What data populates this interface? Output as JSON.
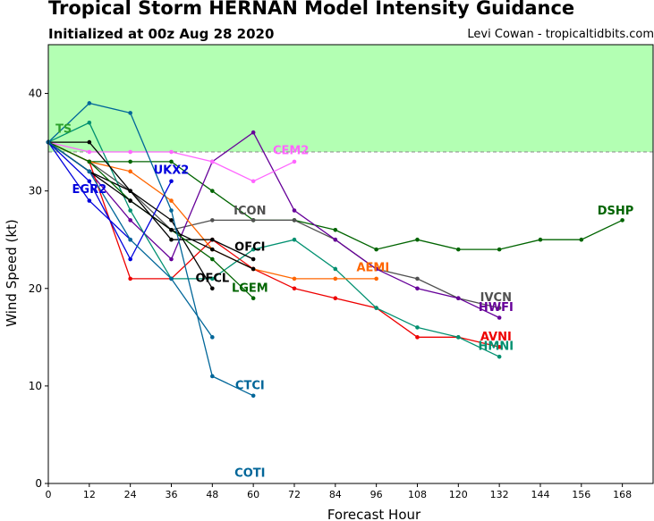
{
  "header": {
    "title": "Tropical Storm HERNAN Model Intensity Guidance",
    "subtitle": "Initialized at 00z Aug 28 2020",
    "credit": "Levi Cowan - tropicaltidbits.com"
  },
  "chart_data": {
    "type": "line",
    "xlabel": "Forecast Hour",
    "ylabel": "Wind Speed (kt)",
    "xlim": [
      0,
      177
    ],
    "ylim": [
      0,
      45
    ],
    "xticks": [
      0,
      12,
      24,
      36,
      48,
      60,
      72,
      84,
      96,
      108,
      120,
      132,
      144,
      156,
      168
    ],
    "yticks": [
      0,
      10,
      20,
      30,
      40
    ],
    "grid": false,
    "legend": "none",
    "threshold_band": {
      "label": "TS",
      "y0": 34,
      "y1": 45,
      "fill": "#b3ffb3",
      "line": "#888888"
    },
    "series": [
      {
        "name": "DSHP",
        "color": "#006400",
        "x": [
          0,
          12,
          24,
          36,
          48,
          60,
          72,
          84,
          96,
          108,
          120,
          132,
          144,
          156,
          168
        ],
        "y": [
          35,
          33,
          33,
          33,
          30,
          27,
          27,
          26,
          24,
          25,
          24,
          24,
          25,
          25,
          27
        ]
      },
      {
        "name": "IVCN",
        "color": "#505050",
        "x": [
          0,
          12,
          24,
          36,
          48,
          60,
          72,
          84,
          96,
          108,
          120,
          132
        ],
        "y": [
          35,
          33,
          30,
          26,
          27,
          27,
          27,
          25,
          22,
          21,
          19,
          18
        ]
      },
      {
        "name": "HWFI",
        "color": "#660099",
        "x": [
          0,
          12,
          24,
          36,
          48,
          60,
          72,
          84,
          96,
          108,
          120,
          132
        ],
        "y": [
          35,
          32,
          27,
          23,
          33,
          36,
          28,
          25,
          22,
          20,
          19,
          17
        ]
      },
      {
        "name": "AVNI",
        "color": "#ee0000",
        "x": [
          0,
          12,
          24,
          36,
          48,
          60,
          72,
          84,
          96,
          108,
          120,
          132
        ],
        "y": [
          35,
          33,
          21,
          21,
          25,
          22,
          20,
          19,
          18,
          15,
          15,
          14
        ]
      },
      {
        "name": "HMNI",
        "color": "#009070",
        "x": [
          0,
          12,
          24,
          36,
          48,
          60,
          72,
          84,
          96,
          108,
          120,
          132
        ],
        "y": [
          35,
          37,
          28,
          21,
          21,
          24,
          25,
          22,
          18,
          16,
          15,
          13
        ]
      },
      {
        "name": "AEMI",
        "color": "#ff6600",
        "x": [
          0,
          12,
          24,
          36,
          48,
          60,
          72,
          84,
          96
        ],
        "y": [
          35,
          33,
          32,
          29,
          24,
          22,
          21,
          21,
          21
        ]
      },
      {
        "name": "CEM2",
        "color": "#ff66ff",
        "x": [
          0,
          12,
          24,
          36,
          48,
          60,
          72
        ],
        "y": [
          35,
          34,
          34,
          34,
          33,
          31,
          33
        ]
      },
      {
        "name": "UKX2",
        "color": "#0000dd",
        "x": [
          0,
          12,
          24,
          36
        ],
        "y": [
          35,
          31,
          23,
          31
        ]
      },
      {
        "name": "EGR2",
        "color": "#0000dd",
        "x": [
          0,
          12,
          24
        ],
        "y": [
          35,
          29,
          25
        ]
      },
      {
        "name": "OFCI",
        "color": "#000000",
        "x": [
          0,
          12,
          24,
          36,
          48,
          60
        ],
        "y": [
          35,
          35,
          30,
          25,
          25,
          23
        ]
      },
      {
        "name": "OFCL",
        "color": "#000000",
        "x": [
          0,
          12,
          24,
          36,
          48
        ],
        "y": [
          35,
          32,
          30,
          27,
          20
        ]
      },
      {
        "name": "LGEM",
        "color": "#006400",
        "x": [
          0,
          12,
          24,
          36,
          48,
          60
        ],
        "y": [
          35,
          33,
          29,
          26,
          23,
          19
        ]
      },
      {
        "name": "",
        "color": "#000000",
        "x": [
          0,
          12,
          24,
          36,
          48,
          60
        ],
        "y": [
          35,
          32,
          29,
          26,
          24,
          22
        ]
      },
      {
        "name": "CTCI",
        "color": "#006699",
        "x": [
          0,
          12,
          24,
          36,
          48,
          60
        ],
        "y": [
          35,
          39,
          38,
          28,
          11,
          9
        ]
      },
      {
        "name": "COTI",
        "color": "#006699",
        "x": [
          0,
          12,
          24,
          36,
          48
        ],
        "y": [
          35,
          32,
          25,
          21,
          15
        ]
      }
    ],
    "labels": [
      {
        "text": "TS",
        "x": 4.5,
        "y": 36.3,
        "color": "#2ca02c"
      },
      {
        "text": "CEM2",
        "x": 71,
        "y": 34.1,
        "color": "#ff66ff"
      },
      {
        "text": "UKX2",
        "x": 36,
        "y": 32.1,
        "color": "#0000dd"
      },
      {
        "text": "EGR2",
        "x": 12,
        "y": 30.1,
        "color": "#0000dd"
      },
      {
        "text": "ICON",
        "x": 59,
        "y": 27.9,
        "color": "#505050"
      },
      {
        "text": "DSHP",
        "x": 166,
        "y": 27.9,
        "color": "#006400"
      },
      {
        "text": "OFCI",
        "x": 59,
        "y": 24.2,
        "color": "#000000"
      },
      {
        "text": "AEMI",
        "x": 95,
        "y": 22.1,
        "color": "#ff6600"
      },
      {
        "text": "OFCL",
        "x": 48,
        "y": 21.0,
        "color": "#000000"
      },
      {
        "text": "LGEM",
        "x": 59,
        "y": 20.0,
        "color": "#006400"
      },
      {
        "text": "IVCN",
        "x": 131,
        "y": 19.0,
        "color": "#505050"
      },
      {
        "text": "HWFI",
        "x": 131,
        "y": 18.0,
        "color": "#660099"
      },
      {
        "text": "AVNI",
        "x": 131,
        "y": 15.0,
        "color": "#ee0000"
      },
      {
        "text": "HMNI",
        "x": 131,
        "y": 14.0,
        "color": "#009070"
      },
      {
        "text": "CTCI",
        "x": 59,
        "y": 10.0,
        "color": "#006699"
      },
      {
        "text": "COTI",
        "x": 59,
        "y": 1.0,
        "color": "#006699"
      }
    ]
  }
}
